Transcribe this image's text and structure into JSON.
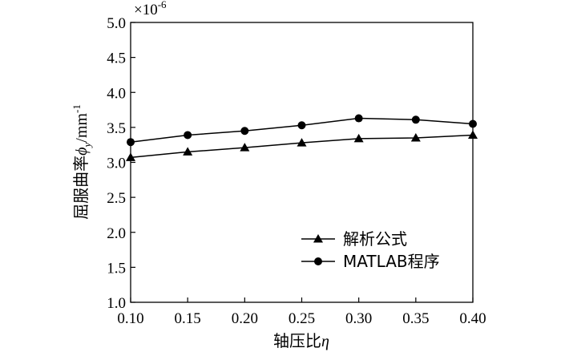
{
  "chart_data": {
    "type": "line",
    "x": [
      0.1,
      0.15,
      0.2,
      0.25,
      0.3,
      0.35,
      0.4
    ],
    "x_tick_labels": [
      "0.10",
      "0.15",
      "0.20",
      "0.25",
      "0.30",
      "0.35",
      "0.40"
    ],
    "xlim": [
      0.1,
      0.4
    ],
    "ylim": [
      1.0,
      5.0
    ],
    "y_ticks": [
      1.0,
      1.5,
      2.0,
      2.5,
      3.0,
      3.5,
      4.0,
      4.5,
      5.0
    ],
    "y_tick_labels": [
      "1.0",
      "1.5",
      "2.0",
      "2.5",
      "3.0",
      "3.5",
      "4.0",
      "4.5",
      "5.0"
    ],
    "y_multiplier": "×10",
    "y_multiplier_exp": "-6",
    "xlabel": "轴压比",
    "xlabel_symbol": "η",
    "ylabel": "屈服曲率",
    "ylabel_symbol": "ϕ",
    "ylabel_subscript": "y",
    "ylabel_unit": "/mm",
    "ylabel_unit_exp": "-1",
    "grid": false,
    "legend_position": "bottom-right",
    "series": [
      {
        "name": "解析公式",
        "marker": "triangle",
        "color": "#000000",
        "values": [
          3.07,
          3.15,
          3.21,
          3.28,
          3.34,
          3.35,
          3.39
        ]
      },
      {
        "name": "MATLAB程序",
        "marker": "circle",
        "color": "#000000",
        "values": [
          3.29,
          3.39,
          3.45,
          3.53,
          3.63,
          3.61,
          3.55
        ]
      }
    ]
  }
}
